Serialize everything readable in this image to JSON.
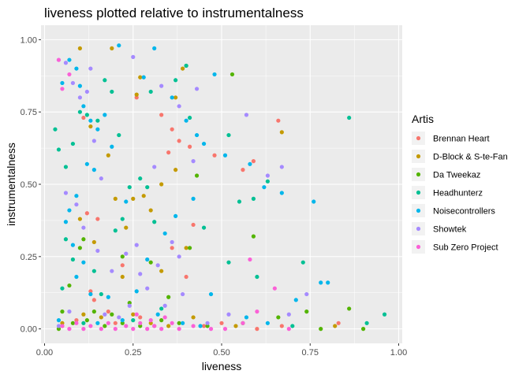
{
  "chart_data": {
    "type": "scatter",
    "title": "liveness plotted relative to instrumentalness",
    "xlabel": "liveness",
    "ylabel": "instrumentalness",
    "xlim": [
      -0.01,
      1.01
    ],
    "ylim": [
      -0.05,
      1.05
    ],
    "x_ticks": [
      {
        "value": 0,
        "label": "0.00"
      },
      {
        "value": 0.25,
        "label": "0.25"
      },
      {
        "value": 0.5,
        "label": "0.50"
      },
      {
        "value": 0.75,
        "label": "0.75"
      },
      {
        "value": 1.0,
        "label": "1.00"
      }
    ],
    "y_ticks": [
      {
        "value": 0,
        "label": "0.00"
      },
      {
        "value": 0.25,
        "label": "0.25"
      },
      {
        "value": 0.5,
        "label": "0.50"
      },
      {
        "value": 0.75,
        "label": "0.75"
      },
      {
        "value": 1.0,
        "label": "1.00"
      }
    ],
    "grid": true,
    "background": "#ebebeb",
    "legend": {
      "title": "Artis",
      "placement": "right"
    },
    "series": [
      {
        "name": "Brennan Heart",
        "color": "#F8766D",
        "points": [
          [
            0.11,
            0.73
          ],
          [
            0.12,
            0.4
          ],
          [
            0.15,
            0.38
          ],
          [
            0.26,
            0.8
          ],
          [
            0.33,
            0.74
          ],
          [
            0.35,
            0.61
          ],
          [
            0.36,
            0.69
          ],
          [
            0.38,
            0.65
          ],
          [
            0.41,
            0.63
          ],
          [
            0.48,
            0.6
          ],
          [
            0.56,
            0.55
          ],
          [
            0.59,
            0.58
          ],
          [
            0.66,
            0.72
          ],
          [
            0.42,
            0.36
          ],
          [
            0.36,
            0.28
          ],
          [
            0.22,
            0.22
          ],
          [
            0.13,
            0.13
          ],
          [
            0.18,
            0.06
          ],
          [
            0.14,
            0.1
          ],
          [
            0.4,
            0.18
          ],
          [
            0.09,
            0.03
          ],
          [
            0.2,
            0.02
          ],
          [
            0.27,
            0.04
          ],
          [
            0.5,
            0.02
          ],
          [
            0.67,
            0.01
          ],
          [
            0.83,
            0.02
          ],
          [
            0.05,
            0.01
          ],
          [
            0.31,
            0.01
          ],
          [
            0.45,
            0.01
          ],
          [
            0.6,
            0.0
          ]
        ]
      },
      {
        "name": "D-Block & S-te-Fan",
        "color": "#C49A00",
        "points": [
          [
            0.1,
            0.97
          ],
          [
            0.19,
            0.97
          ],
          [
            0.27,
            0.87
          ],
          [
            0.26,
            0.81
          ],
          [
            0.39,
            0.9
          ],
          [
            0.37,
            0.8
          ],
          [
            0.18,
            0.6
          ],
          [
            0.2,
            0.45
          ],
          [
            0.25,
            0.45
          ],
          [
            0.28,
            0.46
          ],
          [
            0.3,
            0.41
          ],
          [
            0.33,
            0.5
          ],
          [
            0.1,
            0.38
          ],
          [
            0.23,
            0.35
          ],
          [
            0.14,
            0.3
          ],
          [
            0.22,
            0.18
          ],
          [
            0.33,
            0.2
          ],
          [
            0.4,
            0.28
          ],
          [
            0.11,
            0.05
          ],
          [
            0.16,
            0.04
          ],
          [
            0.25,
            0.05
          ],
          [
            0.3,
            0.02
          ],
          [
            0.05,
            0.02
          ],
          [
            0.35,
            0.01
          ],
          [
            0.42,
            0.04
          ],
          [
            0.54,
            0.01
          ],
          [
            0.82,
            0.01
          ],
          [
            0.67,
            0.68
          ],
          [
            0.37,
            0.55
          ],
          [
            0.13,
            0.7
          ]
        ]
      },
      {
        "name": "Da Tweekaz",
        "color": "#53B400",
        "points": [
          [
            0.53,
            0.88
          ],
          [
            0.4,
            0.91
          ],
          [
            0.43,
            0.53
          ],
          [
            0.41,
            0.28
          ],
          [
            0.3,
            0.23
          ],
          [
            0.22,
            0.25
          ],
          [
            0.11,
            0.31
          ],
          [
            0.1,
            0.28
          ],
          [
            0.07,
            0.15
          ],
          [
            0.05,
            0.06
          ],
          [
            0.08,
            0.02
          ],
          [
            0.12,
            0.03
          ],
          [
            0.17,
            0.01
          ],
          [
            0.22,
            0.02
          ],
          [
            0.27,
            0.01
          ],
          [
            0.33,
            0.03
          ],
          [
            0.38,
            0.02
          ],
          [
            0.46,
            0.01
          ],
          [
            0.56,
            0.02
          ],
          [
            0.59,
            0.32
          ],
          [
            0.74,
            0.06
          ],
          [
            0.78,
            0.0
          ],
          [
            0.86,
            0.07
          ],
          [
            0.9,
            0.0
          ],
          [
            0.66,
            0.04
          ],
          [
            0.14,
            0.06
          ],
          [
            0.19,
            0.05
          ],
          [
            0.24,
            0.09
          ],
          [
            0.35,
            0.11
          ],
          [
            0.04,
            0.0
          ]
        ]
      },
      {
        "name": "Headhunterz",
        "color": "#00C094",
        "points": [
          [
            0.03,
            0.69
          ],
          [
            0.04,
            0.62
          ],
          [
            0.06,
            0.56
          ],
          [
            0.08,
            0.64
          ],
          [
            0.1,
            0.75
          ],
          [
            0.12,
            0.74
          ],
          [
            0.15,
            0.72
          ],
          [
            0.17,
            0.86
          ],
          [
            0.19,
            0.82
          ],
          [
            0.21,
            0.67
          ],
          [
            0.24,
            0.49
          ],
          [
            0.27,
            0.52
          ],
          [
            0.29,
            0.49
          ],
          [
            0.31,
            0.37
          ],
          [
            0.22,
            0.38
          ],
          [
            0.2,
            0.34
          ],
          [
            0.08,
            0.24
          ],
          [
            0.06,
            0.31
          ],
          [
            0.05,
            0.14
          ],
          [
            0.14,
            0.2
          ],
          [
            0.4,
            0.91
          ],
          [
            0.37,
            0.86
          ],
          [
            0.3,
            0.82
          ],
          [
            0.41,
            0.73
          ],
          [
            0.52,
            0.67
          ],
          [
            0.55,
            0.44
          ],
          [
            0.59,
            0.45
          ],
          [
            0.63,
            0.51
          ],
          [
            0.73,
            0.23
          ],
          [
            0.86,
            0.73
          ],
          [
            0.91,
            0.02
          ],
          [
            0.96,
            0.05
          ],
          [
            0.6,
            0.18
          ],
          [
            0.52,
            0.23
          ],
          [
            0.45,
            0.35
          ],
          [
            0.33,
            0.07
          ],
          [
            0.25,
            0.03
          ],
          [
            0.16,
            0.12
          ],
          [
            0.11,
            0.02
          ],
          [
            0.7,
            0.01
          ]
        ]
      },
      {
        "name": "Noisecontrollers",
        "color": "#00B6EB",
        "points": [
          [
            0.05,
            0.85
          ],
          [
            0.07,
            0.93
          ],
          [
            0.09,
            0.9
          ],
          [
            0.1,
            0.84
          ],
          [
            0.11,
            0.77
          ],
          [
            0.13,
            0.72
          ],
          [
            0.15,
            0.69
          ],
          [
            0.17,
            0.74
          ],
          [
            0.14,
            0.55
          ],
          [
            0.12,
            0.57
          ],
          [
            0.09,
            0.46
          ],
          [
            0.07,
            0.41
          ],
          [
            0.06,
            0.37
          ],
          [
            0.08,
            0.29
          ],
          [
            0.11,
            0.23
          ],
          [
            0.09,
            0.18
          ],
          [
            0.13,
            0.12
          ],
          [
            0.18,
            0.11
          ],
          [
            0.22,
            0.03
          ],
          [
            0.15,
            0.02
          ],
          [
            0.21,
            0.98
          ],
          [
            0.31,
            0.97
          ],
          [
            0.28,
            0.87
          ],
          [
            0.36,
            0.8
          ],
          [
            0.4,
            0.72
          ],
          [
            0.43,
            0.67
          ],
          [
            0.45,
            0.64
          ],
          [
            0.48,
            0.88
          ],
          [
            0.51,
            0.6
          ],
          [
            0.58,
            0.57
          ],
          [
            0.62,
            0.49
          ],
          [
            0.67,
            0.47
          ],
          [
            0.76,
            0.44
          ],
          [
            0.78,
            0.16
          ],
          [
            0.8,
            0.16
          ],
          [
            0.71,
            0.1
          ],
          [
            0.47,
            0.12
          ],
          [
            0.42,
            0.45
          ],
          [
            0.37,
            0.39
          ],
          [
            0.34,
            0.33
          ],
          [
            0.29,
            0.24
          ],
          [
            0.26,
            0.13
          ],
          [
            0.32,
            0.05
          ],
          [
            0.39,
            0.02
          ],
          [
            0.44,
            0.01
          ],
          [
            0.57,
            0.04
          ],
          [
            0.63,
            0.02
          ],
          [
            0.04,
            0.03
          ],
          [
            0.23,
            0.44
          ],
          [
            0.19,
            0.63
          ]
        ]
      },
      {
        "name": "Showtek",
        "color": "#A58AFF",
        "points": [
          [
            0.04,
            0.93
          ],
          [
            0.06,
            0.92
          ],
          [
            0.08,
            0.85
          ],
          [
            0.1,
            0.8
          ],
          [
            0.12,
            0.82
          ],
          [
            0.14,
            0.65
          ],
          [
            0.16,
            0.52
          ],
          [
            0.09,
            0.43
          ],
          [
            0.06,
            0.47
          ],
          [
            0.11,
            0.35
          ],
          [
            0.15,
            0.27
          ],
          [
            0.19,
            0.2
          ],
          [
            0.23,
            0.26
          ],
          [
            0.27,
            0.19
          ],
          [
            0.32,
            0.22
          ],
          [
            0.36,
            0.3
          ],
          [
            0.38,
            0.25
          ],
          [
            0.39,
            0.12
          ],
          [
            0.34,
            0.08
          ],
          [
            0.29,
            0.14
          ],
          [
            0.24,
            0.08
          ],
          [
            0.21,
            0.04
          ],
          [
            0.17,
            0.05
          ],
          [
            0.07,
            0.06
          ],
          [
            0.04,
            0.01
          ],
          [
            0.25,
            0.94
          ],
          [
            0.33,
            0.84
          ],
          [
            0.38,
            0.77
          ],
          [
            0.43,
            0.83
          ],
          [
            0.57,
            0.74
          ],
          [
            0.63,
            0.53
          ],
          [
            0.67,
            0.56
          ],
          [
            0.74,
            0.12
          ],
          [
            0.69,
            0.05
          ],
          [
            0.52,
            0.05
          ],
          [
            0.46,
            0.02
          ],
          [
            0.13,
            0.9
          ],
          [
            0.26,
            0.29
          ],
          [
            0.31,
            0.56
          ],
          [
            0.42,
            0.58
          ]
        ]
      },
      {
        "name": "Sub Zero Project",
        "color": "#FB61D7",
        "points": [
          [
            0.04,
            0.93
          ],
          [
            0.07,
            0.88
          ],
          [
            0.05,
            0.83
          ],
          [
            0.58,
            0.24
          ],
          [
            0.65,
            0.14
          ],
          [
            0.6,
            0.06
          ],
          [
            0.56,
            0.02
          ],
          [
            0.51,
            0.0
          ],
          [
            0.47,
            0.0
          ],
          [
            0.42,
            0.01
          ],
          [
            0.38,
            0.0
          ],
          [
            0.36,
            0.02
          ],
          [
            0.33,
            0.0
          ],
          [
            0.31,
            0.01
          ],
          [
            0.29,
            0.0
          ],
          [
            0.27,
            0.02
          ],
          [
            0.25,
            0.0
          ],
          [
            0.23,
            0.01
          ],
          [
            0.2,
            0.0
          ],
          [
            0.18,
            0.02
          ],
          [
            0.16,
            0.0
          ],
          [
            0.13,
            0.01
          ],
          [
            0.11,
            0.0
          ],
          [
            0.09,
            0.02
          ],
          [
            0.07,
            0.0
          ],
          [
            0.05,
            0.01
          ],
          [
            0.34,
            0.04
          ],
          [
            0.3,
            0.03
          ],
          [
            0.26,
            0.05
          ],
          [
            0.69,
            0.0
          ]
        ]
      }
    ]
  }
}
